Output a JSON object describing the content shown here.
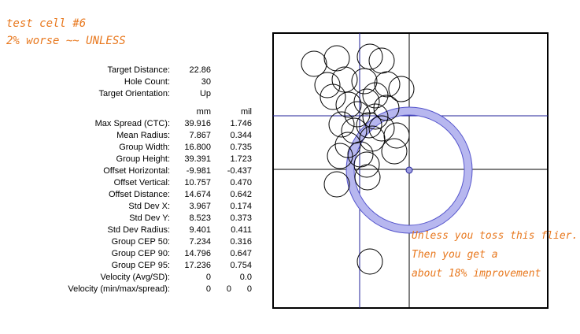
{
  "title": {
    "line1": "test cell #6",
    "line2": "2% worse ~~ UNLESS"
  },
  "info": [
    {
      "label": "Target Distance:",
      "value": "22.86"
    },
    {
      "label": "Hole Count:",
      "value": "30"
    },
    {
      "label": "Target Orientation:",
      "value": "Up"
    }
  ],
  "units": {
    "mm": "mm",
    "mil": "mil"
  },
  "stats": [
    {
      "label": "Max Spread (CTC):",
      "mm": "39.916",
      "mil": "1.746"
    },
    {
      "label": "Mean Radius:",
      "mm": "7.867",
      "mil": "0.344"
    },
    {
      "label": "Group Width:",
      "mm": "16.800",
      "mil": "0.735"
    },
    {
      "label": "Group Height:",
      "mm": "39.391",
      "mil": "1.723"
    },
    {
      "label": "Offset Horizontal:",
      "mm": "-9.981",
      "mil": "-0.437"
    },
    {
      "label": "Offset Vertical:",
      "mm": "10.757",
      "mil": "0.470"
    },
    {
      "label": "Offset Distance:",
      "mm": "14.674",
      "mil": "0.642"
    },
    {
      "label": "Std Dev X:",
      "mm": "3.967",
      "mil": "0.174"
    },
    {
      "label": "Std Dev Y:",
      "mm": "8.523",
      "mil": "0.373"
    },
    {
      "label": "Std Dev Radius:",
      "mm": "9.401",
      "mil": "0.411"
    },
    {
      "label": "Group CEP 50:",
      "mm": "7.234",
      "mil": "0.316"
    },
    {
      "label": "Group CEP 90:",
      "mm": "14.796",
      "mil": "0.647"
    },
    {
      "label": "Group CEP 95:",
      "mm": "17.236",
      "mil": "0.754"
    },
    {
      "label": "Velocity (Avg/SD):",
      "mm": "0",
      "mil": "0.0"
    }
  ],
  "velocity_spread": {
    "label": "Velocity (min/max/spread):",
    "min": "0",
    "max": "0",
    "spread": "0"
  },
  "annotation": {
    "line1": "Unless you toss this flier.",
    "line2": "Then you get a",
    "line3": "about 18% improvement"
  },
  "colors": {
    "accent": "#e8781e",
    "ring_fill": "#b7b7ef",
    "ring_stroke": "#5555cc",
    "line_blue": "#22229a"
  }
}
